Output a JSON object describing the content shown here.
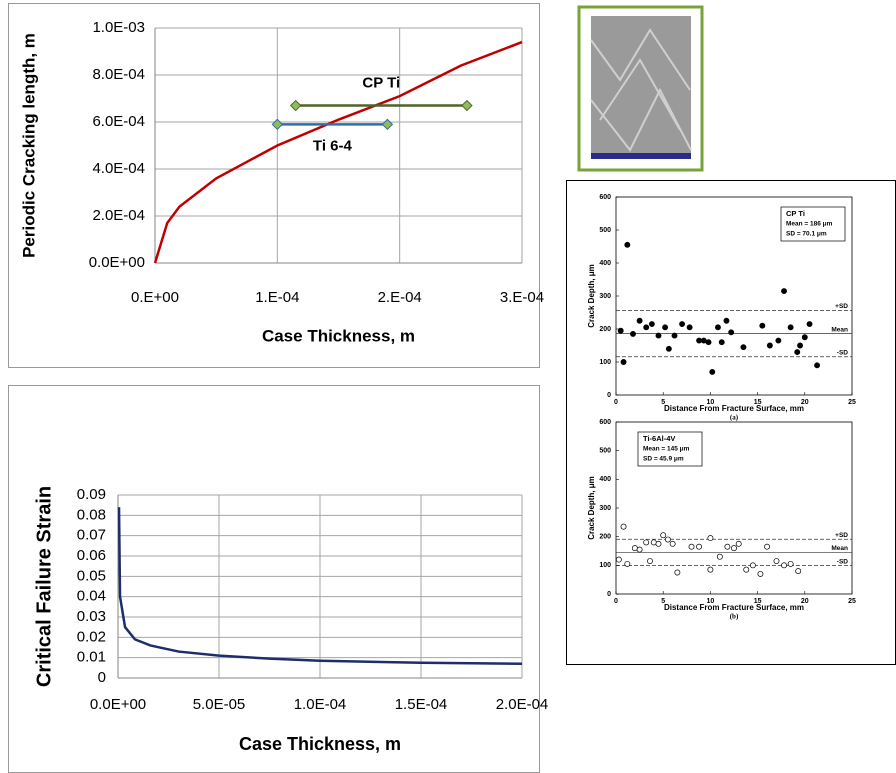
{
  "chart_data": [
    {
      "type": "line",
      "y_label": "Periodic Cracking length, m",
      "x_label": "Case Thickness, m",
      "xlim": [
        0,
        0.0003
      ],
      "ylim": [
        0,
        0.001
      ],
      "xticks": [
        {
          "value": 0,
          "label": "0.E+00"
        },
        {
          "value": 0.0001,
          "label": "1.E-04"
        },
        {
          "value": 0.0002,
          "label": "2.E-04"
        },
        {
          "value": 0.0003,
          "label": "3.E-04"
        }
      ],
      "yticks": [
        {
          "value": 0,
          "label": "0.0E+00"
        },
        {
          "value": 0.0002,
          "label": "2.0E-04"
        },
        {
          "value": 0.0004,
          "label": "4.0E-04"
        },
        {
          "value": 0.0006,
          "label": "6.0E-04"
        },
        {
          "value": 0.0008,
          "label": "8.0E-04"
        },
        {
          "value": 0.001,
          "label": "1.0E-03"
        }
      ],
      "grid": true,
      "series": [
        {
          "color": "#c00000",
          "x": [
            0,
            1e-05,
            2e-05,
            5e-05,
            0.0001,
            0.00015,
            0.0002,
            0.00025,
            0.0003
          ],
          "values": [
            0,
            0.00017,
            0.00024,
            0.00036,
            0.0005,
            0.00061,
            0.00071,
            0.00084,
            0.00094
          ]
        },
        {
          "name": "CP Ti",
          "color": "#4f6228",
          "marker": "diamond",
          "label_side": "above",
          "x": [
            0.000115,
            0.000255
          ],
          "values": [
            0.00067,
            0.00067
          ]
        },
        {
          "name": "Ti 6-4",
          "color": "#2e6fa7",
          "marker": "diamond",
          "label_side": "below",
          "x": [
            0.0001,
            0.00019
          ],
          "values": [
            0.00059,
            0.00059
          ]
        }
      ]
    },
    {
      "type": "line",
      "y_label": "Critical Failure Strain",
      "x_label": "Case Thickness, m",
      "xlim": [
        0,
        0.0002
      ],
      "ylim": [
        0,
        0.09
      ],
      "xticks": [
        {
          "value": 0,
          "label": "0.0E+00"
        },
        {
          "value": 5e-05,
          "label": "5.0E-05"
        },
        {
          "value": 0.0001,
          "label": "1.0E-04"
        },
        {
          "value": 0.00015,
          "label": "1.5E-04"
        },
        {
          "value": 0.0002,
          "label": "2.0E-04"
        }
      ],
      "yticks": [
        0,
        0.01,
        0.02,
        0.03,
        0.04,
        0.05,
        0.06,
        0.07,
        0.08,
        0.09
      ],
      "grid": true,
      "series": [
        {
          "color": "#1f2d6b",
          "x": [
            5e-07,
            1e-06,
            3.5e-06,
            8.4e-06,
            1.6e-05,
            3e-05,
            5e-05,
            7.5e-05,
            0.0001,
            0.00015,
            0.0002
          ],
          "values": [
            0.084,
            0.04,
            0.025,
            0.019,
            0.016,
            0.013,
            0.011,
            0.0095,
            0.0085,
            0.0075,
            0.007
          ]
        }
      ]
    },
    {
      "type": "scatter",
      "panel": "(a)",
      "y_label": "Crack Depth, μm",
      "x_label": "Distance From Fracture Surface, mm",
      "legend_text": [
        "CP Ti",
        "Mean = 186 μm",
        "SD = 70.1 μm"
      ],
      "xlim": [
        0,
        25
      ],
      "ylim": [
        0,
        600
      ],
      "xticks": [
        0,
        5,
        10,
        15,
        20,
        25
      ],
      "yticks": [
        0,
        100,
        200,
        300,
        400,
        500,
        600
      ],
      "reference_lines": [
        {
          "label": "+SD",
          "value": 256,
          "style": "dashed"
        },
        {
          "label": "Mean",
          "value": 186,
          "style": "solid"
        },
        {
          "label": "-SD",
          "value": 116,
          "style": "dashed"
        }
      ],
      "x": [
        0.5,
        0.8,
        1.2,
        1.8,
        2.5,
        3.2,
        3.8,
        4.5,
        5.2,
        5.6,
        6.2,
        7.0,
        7.8,
        8.8,
        9.3,
        9.8,
        10.2,
        10.8,
        11.2,
        11.7,
        12.2,
        13.5,
        15.5,
        16.3,
        17.2,
        17.8,
        18.5,
        19.2,
        19.5,
        20.0,
        20.5,
        21.3
      ],
      "series": [
        {
          "color": "#000000",
          "marker": "filled",
          "values": [
            195,
            100,
            455,
            185,
            225,
            205,
            215,
            180,
            205,
            140,
            180,
            215,
            205,
            165,
            165,
            160,
            70,
            205,
            160,
            225,
            190,
            145,
            210,
            150,
            165,
            315,
            205,
            130,
            150,
            175,
            215,
            90
          ]
        }
      ]
    },
    {
      "type": "scatter",
      "panel": "(b)",
      "y_label": "Crack Depth, μm",
      "x_label": "Distance From Fracture Surface, mm",
      "legend_text": [
        "Ti-6Al-4V",
        "Mean = 145 μm",
        "SD = 45.9 μm"
      ],
      "xlim": [
        0,
        25
      ],
      "ylim": [
        0,
        600
      ],
      "xticks": [
        0,
        5,
        10,
        15,
        20,
        25
      ],
      "yticks": [
        0,
        100,
        200,
        300,
        400,
        500,
        600
      ],
      "reference_lines": [
        {
          "label": "+SD",
          "value": 191,
          "style": "dashed"
        },
        {
          "label": "Mean",
          "value": 145,
          "style": "solid"
        },
        {
          "label": "-SD",
          "value": 99,
          "style": "dashed"
        }
      ],
      "x": [
        0.3,
        0.8,
        1.2,
        2.0,
        2.5,
        3.2,
        3.6,
        4.0,
        4.5,
        5.0,
        5.5,
        6.0,
        6.5,
        8.0,
        8.8,
        10.0,
        10.0,
        11.0,
        11.8,
        12.5,
        13.0,
        13.8,
        14.5,
        15.3,
        16.0,
        17.0,
        17.8,
        18.5,
        19.3
      ],
      "series": [
        {
          "color": "#000000",
          "marker": "open",
          "values": [
            120,
            235,
            105,
            160,
            155,
            180,
            115,
            180,
            175,
            205,
            190,
            175,
            75,
            165,
            165,
            195,
            85,
            130,
            165,
            160,
            175,
            85,
            100,
            70,
            165,
            115,
            100,
            105,
            80
          ]
        }
      ]
    }
  ]
}
